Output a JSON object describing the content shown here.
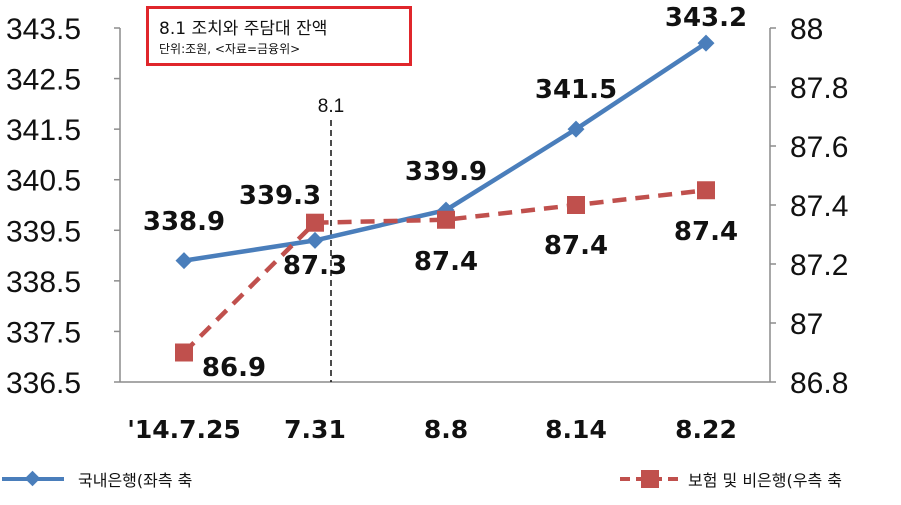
{
  "title_box": {
    "title": "8.1 조치와 주담대 잔액",
    "subtitle": "단위:조원, <자료=금융위>"
  },
  "chart_data": {
    "type": "line",
    "categories": [
      "'14.7.25",
      "7.31",
      "8.8",
      "8.14",
      "8.22"
    ],
    "series": [
      {
        "name": "국내은행(좌측 축",
        "axis": "left",
        "values": [
          338.9,
          339.3,
          339.9,
          341.5,
          343.2
        ],
        "data_labels": [
          "338.9",
          "339.3",
          "339.9",
          "341.5",
          "343.2"
        ],
        "color": "#4a7ebb",
        "marker": "diamond",
        "line_style": "solid"
      },
      {
        "name": "보험 및 비은행(우측 축",
        "axis": "right",
        "values": [
          86.9,
          87.34,
          87.35,
          87.4,
          87.45
        ],
        "data_labels": [
          "86.9",
          "87.3",
          "87.4",
          "87.4",
          "87.4"
        ],
        "color": "#c0504d",
        "marker": "square",
        "line_style": "dashed"
      }
    ],
    "left_axis": {
      "ylim": [
        336.5,
        343.5
      ],
      "ticks": [
        "336.5",
        "337.5",
        "338.5",
        "339.5",
        "340.5",
        "341.5",
        "342.5",
        "343.5"
      ]
    },
    "right_axis": {
      "ylim": [
        86.8,
        88
      ],
      "ticks": [
        "86.8",
        "87",
        "87.2",
        "87.4",
        "87.6",
        "87.8",
        "88"
      ]
    },
    "annotation": {
      "label": "8.1",
      "position": "between 7.25 and 7.31",
      "line_style": "dashed"
    },
    "grid": false,
    "legend": "bottom"
  }
}
